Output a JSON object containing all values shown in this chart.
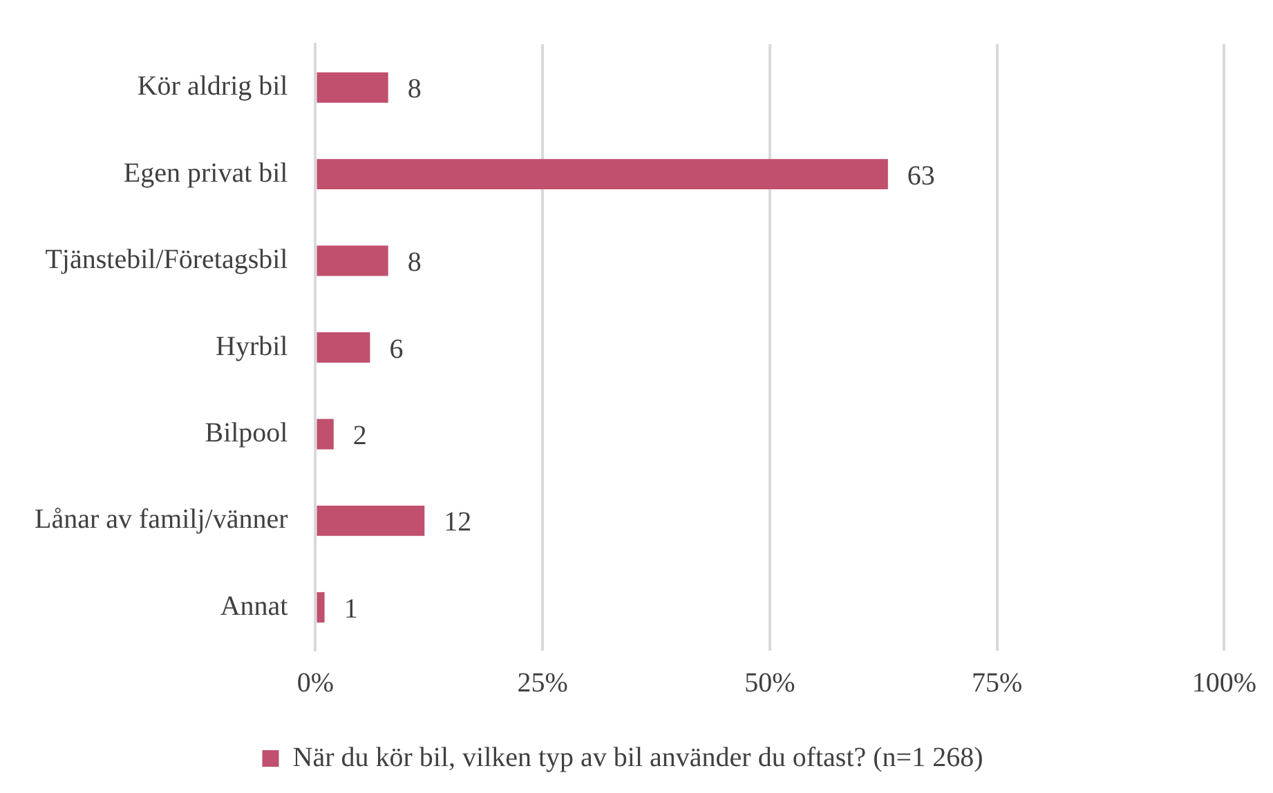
{
  "chart_data": {
    "type": "bar",
    "orientation": "horizontal",
    "categories": [
      "Kör aldrig bil",
      "Egen privat bil",
      "Tjänstebil/Företagsbil",
      "Hyrbil",
      "Bilpool",
      "Lånar av familj/vänner",
      "Annat"
    ],
    "series": [
      {
        "name": "När du kör bil, vilken typ av bil använder du oftast? (n=1 268)",
        "color": "#c0506e",
        "values": [
          8,
          63,
          8,
          6,
          2,
          12,
          1
        ]
      }
    ],
    "xlim": [
      0,
      100
    ],
    "xticks": [
      {
        "value": 0,
        "label": "0%"
      },
      {
        "value": 25,
        "label": "25%"
      },
      {
        "value": 50,
        "label": "50%"
      },
      {
        "value": 75,
        "label": "75%"
      },
      {
        "value": 100,
        "label": "100%"
      }
    ],
    "grid": "x",
    "legend": "bottom",
    "data_labels": true
  }
}
